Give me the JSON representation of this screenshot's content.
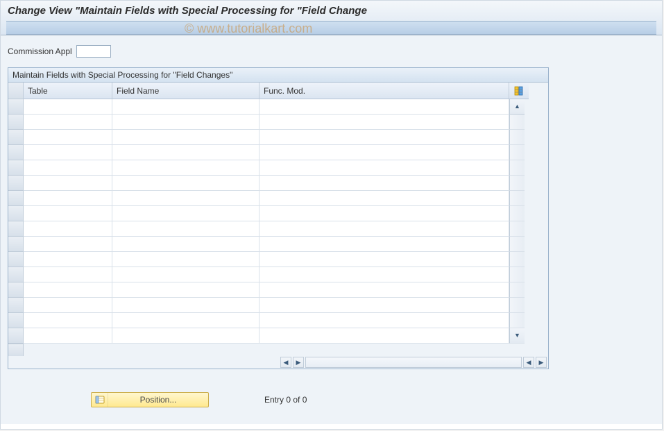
{
  "header": {
    "title": "Change View \"Maintain Fields with Special Processing for \"Field Change"
  },
  "watermark": "© www.tutorialkart.com",
  "filter": {
    "label": "Commission Appl",
    "value": ""
  },
  "grid": {
    "title": "Maintain Fields with Special Processing for \"Field Changes\"",
    "columns": {
      "table": "Table",
      "field_name": "Field Name",
      "func_mod": "Func. Mod."
    },
    "row_count": 16,
    "colors": {
      "header_bg_top": "#eef3fa",
      "header_bg_bottom": "#dbe5f1",
      "row_bg": "#ffffff",
      "grid_line": "#d8e0e9",
      "marker_bg_top": "#e9eef4",
      "marker_bg_bottom": "#d7e0ea"
    }
  },
  "footer": {
    "position_button_label": "Position...",
    "entry_text": "Entry 0 of 0"
  },
  "theme": {
    "page_bg": "#eef3f8",
    "title_bg_top": "#f4f7fa",
    "title_bg_bottom": "#dbe6f2",
    "border": "#9ab2cc",
    "accent_arrow": "#3a5a7a",
    "position_btn_top": "#fff7cf",
    "position_btn_bottom": "#ffe98f",
    "position_btn_border": "#cbae4d"
  }
}
